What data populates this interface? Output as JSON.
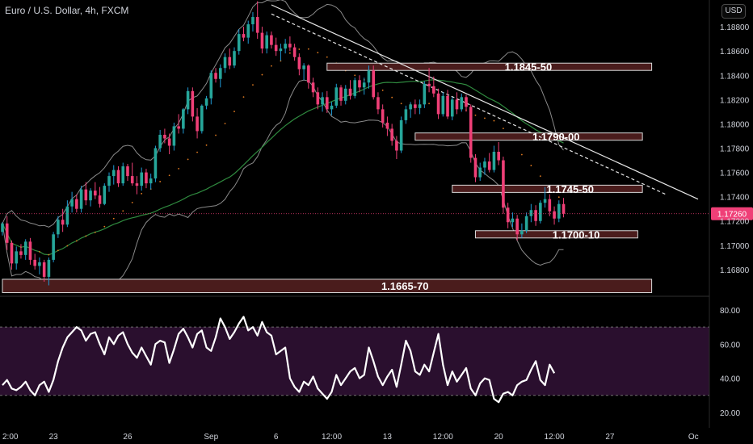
{
  "symbol_title": "Euro / U.S. Dollar, 4h, FXCM",
  "currency_button": "USD",
  "colors": {
    "background": "#000000",
    "bull": "#26a69a",
    "bull_wick": "#1e9ad6",
    "bear": "#ef3f77",
    "zone_fill": "#4a1c1c",
    "zone_stroke": "#d9d9d9",
    "price_badge": "#ef3f77",
    "rsi_band": "#2a0f2e",
    "ma_green": "#2f8a3f",
    "bb": "#8a8a8a",
    "trend": "#e6e6e6",
    "dots": "#e07a20"
  },
  "chart_data": [
    {
      "type": "candlestick",
      "title": "Euro / U.S. Dollar, 4h, FXCM",
      "ylim": [
        1.1658,
        1.1902
      ],
      "y_ticks": [
        "1.18800",
        "1.18600",
        "1.18400",
        "1.18200",
        "1.18000",
        "1.17800",
        "1.17600",
        "1.17400",
        "1.17200",
        "1.17000",
        "1.16800"
      ],
      "x_ticks": [
        {
          "label": "2:00",
          "x": 0
        },
        {
          "label": "23",
          "x": 11
        },
        {
          "label": "26",
          "x": 27
        },
        {
          "label": "Sep",
          "x": 45
        },
        {
          "label": "6",
          "x": 59
        },
        {
          "label": "12:00",
          "x": 71
        },
        {
          "label": "13",
          "x": 83
        },
        {
          "label": "12:00",
          "x": 95
        },
        {
          "label": "20",
          "x": 107
        },
        {
          "label": "12:00",
          "x": 119
        },
        {
          "label": "27",
          "x": 131
        },
        {
          "label": "Oc",
          "x": 149
        }
      ],
      "last_price": "1.17260",
      "last_value": 1.1726,
      "zones": [
        {
          "label": "1.1845-50",
          "y1": 1.185,
          "y2": 1.18445,
          "x_start": 70,
          "x_end": 140
        },
        {
          "label": "1.1790-00",
          "y1": 1.17925,
          "y2": 1.17875,
          "x_start": 89,
          "x_end": 138
        },
        {
          "label": "1.1745-50",
          "y1": 1.17495,
          "y2": 1.17445,
          "x_start": 97,
          "x_end": 138
        },
        {
          "label": "1.1700-10",
          "y1": 1.1712,
          "y2": 1.1707,
          "x_start": 102,
          "x_end": 137
        },
        {
          "label": "1.1665-70",
          "y1": 1.1672,
          "y2": 1.1661,
          "x_start": 0,
          "x_end": 140
        }
      ],
      "trendlines": [
        {
          "style": "solid",
          "x1": 58,
          "y1": 1.1898,
          "x2": 150,
          "y2": 1.1738
        },
        {
          "style": "dashed",
          "x1": 58,
          "y1": 1.18905,
          "x2": 143,
          "y2": 1.1742
        }
      ],
      "candles": [
        [
          1.1711,
          1.1719,
          1.1708,
          1.1718
        ],
        [
          1.1718,
          1.1724,
          1.1696,
          1.1702
        ],
        [
          1.1702,
          1.1704,
          1.168,
          1.1685
        ],
        [
          1.1685,
          1.1699,
          1.168,
          1.1695
        ],
        [
          1.1695,
          1.1701,
          1.1689,
          1.1692
        ],
        [
          1.1692,
          1.1705,
          1.1688,
          1.1703
        ],
        [
          1.1703,
          1.1706,
          1.1684,
          1.1688
        ],
        [
          1.1688,
          1.1693,
          1.168,
          1.1683
        ],
        [
          1.1683,
          1.169,
          1.1676,
          1.1686
        ],
        [
          1.1686,
          1.1688,
          1.167,
          1.1674
        ],
        [
          1.1674,
          1.169,
          1.1667,
          1.1688
        ],
        [
          1.1688,
          1.1711,
          1.1686,
          1.1709
        ],
        [
          1.1709,
          1.1724,
          1.1706,
          1.1721
        ],
        [
          1.1721,
          1.173,
          1.1711,
          1.1717
        ],
        [
          1.1717,
          1.1737,
          1.1715,
          1.1732
        ],
        [
          1.1732,
          1.1744,
          1.1727,
          1.1738
        ],
        [
          1.1738,
          1.1742,
          1.1727,
          1.173
        ],
        [
          1.173,
          1.1749,
          1.1727,
          1.1746
        ],
        [
          1.1746,
          1.1752,
          1.1733,
          1.1737
        ],
        [
          1.1737,
          1.1747,
          1.1732,
          1.1745
        ],
        [
          1.1745,
          1.1752,
          1.1738,
          1.1741
        ],
        [
          1.1741,
          1.1748,
          1.1731,
          1.1734
        ],
        [
          1.1734,
          1.1751,
          1.1733,
          1.1749
        ],
        [
          1.1749,
          1.176,
          1.1744,
          1.1757
        ],
        [
          1.1757,
          1.1766,
          1.175,
          1.1762
        ],
        [
          1.1762,
          1.1765,
          1.1748,
          1.1751
        ],
        [
          1.1751,
          1.1768,
          1.1749,
          1.1765
        ],
        [
          1.1765,
          1.1767,
          1.1753,
          1.1757
        ],
        [
          1.1757,
          1.1768,
          1.1749,
          1.1751
        ],
        [
          1.1751,
          1.1757,
          1.1742,
          1.1749
        ],
        [
          1.1749,
          1.1764,
          1.1745,
          1.176
        ],
        [
          1.176,
          1.1763,
          1.1747,
          1.1751
        ],
        [
          1.1751,
          1.1759,
          1.1746,
          1.1755
        ],
        [
          1.1755,
          1.1782,
          1.1752,
          1.178
        ],
        [
          1.178,
          1.1795,
          1.1777,
          1.1791
        ],
        [
          1.1791,
          1.1796,
          1.1784,
          1.1788
        ],
        [
          1.1788,
          1.1792,
          1.1775,
          1.1782
        ],
        [
          1.1782,
          1.1801,
          1.1778,
          1.1798
        ],
        [
          1.1798,
          1.1808,
          1.1792,
          1.1796
        ],
        [
          1.1796,
          1.1813,
          1.1792,
          1.1812
        ],
        [
          1.1812,
          1.183,
          1.1808,
          1.1827
        ],
        [
          1.1827,
          1.183,
          1.1802,
          1.1806
        ],
        [
          1.1806,
          1.1813,
          1.1788,
          1.1794
        ],
        [
          1.1794,
          1.1816,
          1.1792,
          1.1815
        ],
        [
          1.1815,
          1.1823,
          1.1812,
          1.1821
        ],
        [
          1.1821,
          1.1844,
          1.1816,
          1.1842
        ],
        [
          1.1842,
          1.1846,
          1.1834,
          1.1837
        ],
        [
          1.1837,
          1.1849,
          1.183,
          1.1846
        ],
        [
          1.1846,
          1.1858,
          1.1842,
          1.1855
        ],
        [
          1.1855,
          1.1862,
          1.1845,
          1.1848
        ],
        [
          1.1848,
          1.1863,
          1.1846,
          1.186
        ],
        [
          1.186,
          1.1878,
          1.1857,
          1.1874
        ],
        [
          1.1874,
          1.188,
          1.1868,
          1.1871
        ],
        [
          1.1871,
          1.1885,
          1.1866,
          1.1882
        ],
        [
          1.1882,
          1.1892,
          1.1876,
          1.1888
        ],
        [
          1.1888,
          1.1901,
          1.187,
          1.1875
        ],
        [
          1.1875,
          1.188,
          1.1858,
          1.1862
        ],
        [
          1.1862,
          1.1876,
          1.1858,
          1.1873
        ],
        [
          1.1873,
          1.1876,
          1.1862,
          1.1865
        ],
        [
          1.1865,
          1.1871,
          1.1856,
          1.186
        ],
        [
          1.186,
          1.1866,
          1.1852,
          1.1862
        ],
        [
          1.1862,
          1.187,
          1.1858,
          1.1866
        ],
        [
          1.1866,
          1.1872,
          1.186,
          1.1863
        ],
        [
          1.1863,
          1.1866,
          1.1852,
          1.1855
        ],
        [
          1.1855,
          1.1858,
          1.184,
          1.1845
        ],
        [
          1.1845,
          1.185,
          1.1836,
          1.1848
        ],
        [
          1.1848,
          1.1849,
          1.1829,
          1.1834
        ],
        [
          1.1834,
          1.1838,
          1.1822,
          1.1826
        ],
        [
          1.1826,
          1.183,
          1.1812,
          1.1816
        ],
        [
          1.1816,
          1.1826,
          1.181,
          1.1822
        ],
        [
          1.1822,
          1.1827,
          1.1809,
          1.1812
        ],
        [
          1.1812,
          1.1818,
          1.1807,
          1.1815
        ],
        [
          1.1815,
          1.1833,
          1.1813,
          1.183
        ],
        [
          1.183,
          1.1832,
          1.1815,
          1.1819
        ],
        [
          1.1819,
          1.1832,
          1.1816,
          1.1829
        ],
        [
          1.1829,
          1.1836,
          1.182,
          1.1823
        ],
        [
          1.1823,
          1.1838,
          1.1821,
          1.1836
        ],
        [
          1.1836,
          1.184,
          1.1826,
          1.183
        ],
        [
          1.183,
          1.1838,
          1.1824,
          1.1834
        ],
        [
          1.1834,
          1.1848,
          1.1829,
          1.1844
        ],
        [
          1.1844,
          1.1848,
          1.182,
          1.1822
        ],
        [
          1.1822,
          1.1826,
          1.1808,
          1.1812
        ],
        [
          1.1812,
          1.1816,
          1.1797,
          1.1801
        ],
        [
          1.1801,
          1.1806,
          1.179,
          1.1796
        ],
        [
          1.1796,
          1.18,
          1.1782,
          1.1786
        ],
        [
          1.1786,
          1.179,
          1.1771,
          1.1778
        ],
        [
          1.1778,
          1.1806,
          1.1776,
          1.1803
        ],
        [
          1.1803,
          1.1815,
          1.18,
          1.1812
        ],
        [
          1.1812,
          1.1818,
          1.1805,
          1.1816
        ],
        [
          1.1816,
          1.182,
          1.1808,
          1.1813
        ],
        [
          1.1813,
          1.182,
          1.1808,
          1.1816
        ],
        [
          1.1816,
          1.1835,
          1.1813,
          1.1833
        ],
        [
          1.1833,
          1.1846,
          1.1826,
          1.1831
        ],
        [
          1.1831,
          1.1839,
          1.1822,
          1.1825
        ],
        [
          1.1825,
          1.1829,
          1.1804,
          1.1808
        ],
        [
          1.1808,
          1.1826,
          1.1806,
          1.1823
        ],
        [
          1.1823,
          1.1828,
          1.1804,
          1.1806
        ],
        [
          1.1806,
          1.1822,
          1.1803,
          1.182
        ],
        [
          1.182,
          1.1826,
          1.1808,
          1.1812
        ],
        [
          1.1812,
          1.1825,
          1.181,
          1.1822
        ],
        [
          1.1822,
          1.1824,
          1.181,
          1.1814
        ],
        [
          1.1814,
          1.1816,
          1.1768,
          1.1772
        ],
        [
          1.1772,
          1.1775,
          1.1752,
          1.1756
        ],
        [
          1.1756,
          1.1768,
          1.1753,
          1.1764
        ],
        [
          1.1764,
          1.1772,
          1.1758,
          1.1769
        ],
        [
          1.1769,
          1.1776,
          1.176,
          1.1762
        ],
        [
          1.1762,
          1.1782,
          1.176,
          1.1777
        ],
        [
          1.1777,
          1.1785,
          1.1766,
          1.177
        ],
        [
          1.177,
          1.1773,
          1.1726,
          1.1731
        ],
        [
          1.1731,
          1.1735,
          1.1714,
          1.1719
        ],
        [
          1.1719,
          1.1727,
          1.1715,
          1.1722
        ],
        [
          1.1722,
          1.1725,
          1.1704,
          1.1709
        ],
        [
          1.1709,
          1.1718,
          1.1706,
          1.1712
        ],
        [
          1.1712,
          1.1727,
          1.171,
          1.1724
        ],
        [
          1.1724,
          1.1734,
          1.1719,
          1.1729
        ],
        [
          1.1729,
          1.1733,
          1.1716,
          1.172
        ],
        [
          1.172,
          1.1737,
          1.1718,
          1.1735
        ],
        [
          1.1735,
          1.1748,
          1.1731,
          1.1738
        ],
        [
          1.1738,
          1.1742,
          1.1724,
          1.1728
        ],
        [
          1.1728,
          1.1732,
          1.1717,
          1.1722
        ],
        [
          1.1722,
          1.1737,
          1.1719,
          1.1734
        ],
        [
          1.1734,
          1.1739,
          1.1723,
          1.1726
        ]
      ]
    },
    {
      "type": "line",
      "title": "",
      "ylim": [
        11,
        88
      ],
      "y_ticks": [
        "80.00",
        "60.00",
        "40.00",
        "20.00"
      ],
      "band": [
        30,
        70
      ],
      "values": [
        36,
        39,
        34,
        33,
        35,
        38,
        33,
        30,
        36,
        38,
        32,
        39,
        50,
        58,
        64,
        67,
        70,
        68,
        62,
        66,
        67,
        60,
        54,
        64,
        60,
        65,
        67,
        60,
        55,
        52,
        58,
        53,
        48,
        60,
        62,
        61,
        49,
        57,
        66,
        69,
        64,
        58,
        66,
        68,
        58,
        56,
        64,
        75,
        70,
        63,
        67,
        72,
        76,
        68,
        70,
        65,
        73,
        67,
        65,
        54,
        56,
        58,
        40,
        35,
        32,
        38,
        36,
        41,
        34,
        31,
        28,
        32,
        42,
        36,
        40,
        44,
        46,
        40,
        42,
        58,
        50,
        41,
        36,
        41,
        45,
        35,
        48,
        62,
        56,
        44,
        42,
        48,
        44,
        55,
        66,
        48,
        36,
        44,
        38,
        42,
        46,
        34,
        30,
        37,
        40,
        39,
        28,
        26,
        31,
        32,
        30,
        36,
        38,
        39,
        45,
        50,
        39,
        36,
        48,
        43
      ]
    }
  ]
}
